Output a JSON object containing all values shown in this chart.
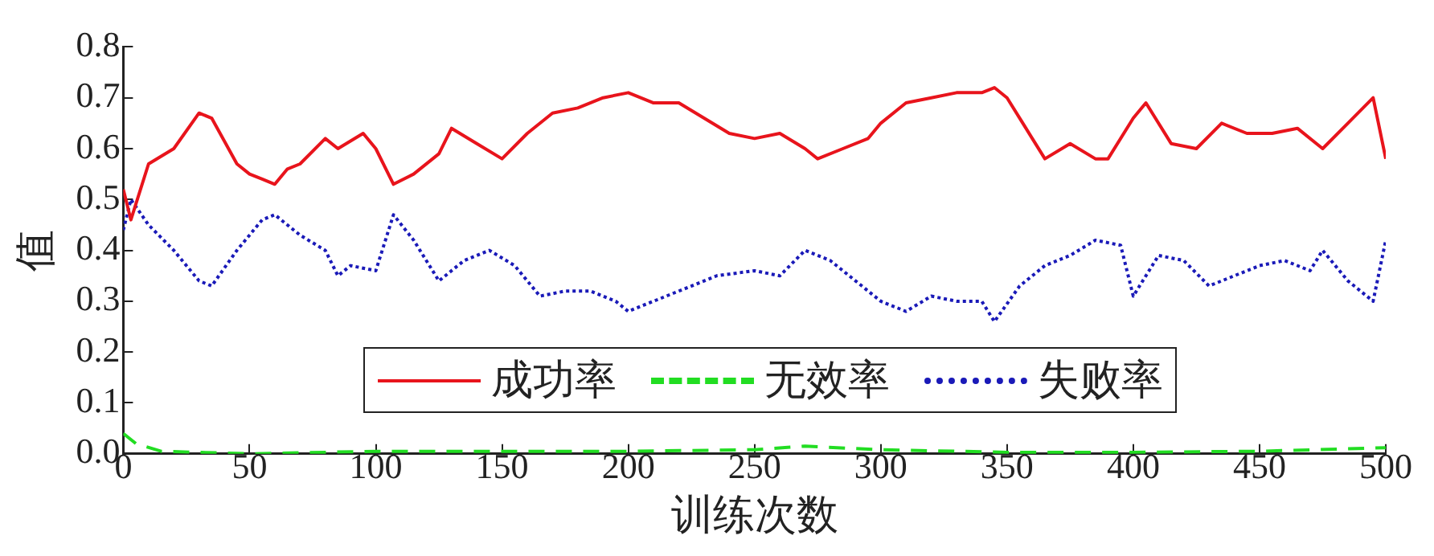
{
  "chart_data": {
    "type": "line",
    "xlabel": "训练次数",
    "ylabel": "值",
    "xlim": [
      0,
      500
    ],
    "xticks": [
      0,
      50,
      100,
      150,
      200,
      250,
      300,
      350,
      400,
      450,
      500
    ],
    "ylim": [
      0,
      0.8
    ],
    "yticks": [
      {
        "value": 0,
        "label": "0.0"
      },
      0.1,
      0.2,
      0.3,
      0.4,
      0.5,
      0.6,
      0.7,
      0.8
    ],
    "grid": false,
    "legend": "bottom",
    "marker": "none",
    "series": [
      {
        "name": "成功率",
        "color": "#e8141c",
        "line_style": "solid",
        "x": [
          0,
          3,
          10,
          20,
          30,
          35,
          45,
          50,
          55,
          60,
          65,
          70,
          80,
          85,
          95,
          100,
          107,
          115,
          125,
          130,
          140,
          150,
          160,
          170,
          180,
          190,
          200,
          210,
          220,
          230,
          240,
          250,
          260,
          270,
          275,
          285,
          295,
          300,
          310,
          320,
          330,
          340,
          345,
          350,
          360,
          365,
          375,
          385,
          390,
          400,
          405,
          415,
          425,
          435,
          445,
          455,
          465,
          475,
          485,
          495,
          500
        ],
        "values": [
          0.52,
          0.46,
          0.57,
          0.6,
          0.67,
          0.66,
          0.57,
          0.55,
          0.54,
          0.53,
          0.56,
          0.57,
          0.62,
          0.6,
          0.63,
          0.6,
          0.53,
          0.55,
          0.59,
          0.64,
          0.61,
          0.58,
          0.63,
          0.67,
          0.68,
          0.7,
          0.71,
          0.69,
          0.69,
          0.66,
          0.63,
          0.62,
          0.63,
          0.6,
          0.58,
          0.6,
          0.62,
          0.65,
          0.69,
          0.7,
          0.71,
          0.71,
          0.72,
          0.7,
          0.62,
          0.58,
          0.61,
          0.58,
          0.58,
          0.66,
          0.69,
          0.61,
          0.6,
          0.65,
          0.63,
          0.63,
          0.64,
          0.6,
          0.65,
          0.7,
          0.58
        ]
      },
      {
        "name": "无效率",
        "color": "#22dd22",
        "line_style": "dashed",
        "x": [
          0,
          5,
          15,
          50,
          100,
          150,
          200,
          250,
          270,
          300,
          350,
          400,
          450,
          500
        ],
        "values": [
          0.04,
          0.02,
          0.005,
          0.0,
          0.005,
          0.005,
          0.005,
          0.008,
          0.015,
          0.008,
          0.003,
          0.003,
          0.005,
          0.012
        ]
      },
      {
        "name": "失败率",
        "color": "#1a1ab8",
        "line_style": "dotted",
        "x": [
          0,
          3,
          10,
          20,
          30,
          35,
          45,
          55,
          60,
          70,
          80,
          85,
          90,
          100,
          107,
          115,
          125,
          135,
          145,
          155,
          165,
          175,
          185,
          195,
          200,
          210,
          220,
          235,
          250,
          260,
          270,
          280,
          290,
          300,
          310,
          320,
          330,
          340,
          345,
          355,
          365,
          375,
          385,
          395,
          400,
          410,
          420,
          430,
          440,
          450,
          460,
          470,
          475,
          485,
          495,
          500
        ],
        "values": [
          0.44,
          0.5,
          0.45,
          0.4,
          0.34,
          0.33,
          0.4,
          0.46,
          0.47,
          0.43,
          0.4,
          0.35,
          0.37,
          0.36,
          0.47,
          0.42,
          0.34,
          0.38,
          0.4,
          0.37,
          0.31,
          0.32,
          0.32,
          0.3,
          0.28,
          0.3,
          0.32,
          0.35,
          0.36,
          0.35,
          0.4,
          0.38,
          0.34,
          0.3,
          0.28,
          0.31,
          0.3,
          0.3,
          0.26,
          0.33,
          0.37,
          0.39,
          0.42,
          0.41,
          0.31,
          0.39,
          0.38,
          0.33,
          0.35,
          0.37,
          0.38,
          0.36,
          0.4,
          0.34,
          0.3,
          0.42
        ]
      }
    ]
  }
}
